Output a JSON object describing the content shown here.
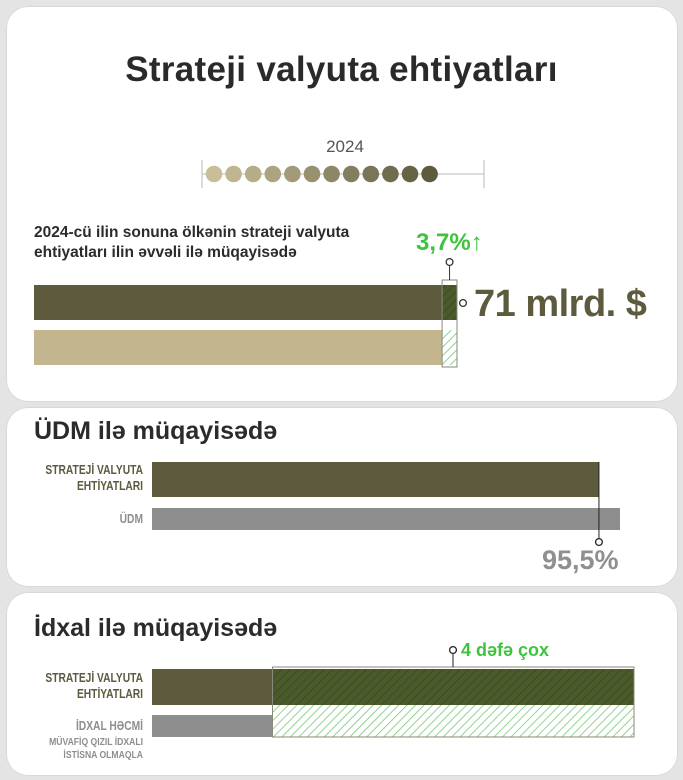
{
  "header": {
    "title": "Strateji valyuta ehtiyatları",
    "year": "2024",
    "timeline_dots": 12
  },
  "colors": {
    "olive_dark": "#5d5a3d",
    "olive_light": "#c3b68e",
    "grey": "#8e8e8e",
    "green": "#3ec43c",
    "green_dark": "#4b5a2a"
  },
  "chart_data": [
    {
      "type": "bar",
      "title": "2024-cü ilin sonuna ölkənin strateji valyuta ehtiyatları ilin əvvəli ilə müqayisədə",
      "series": [
        {
          "values": [
            71
          ]
        },
        {
          "values": [
            68.5
          ]
        }
      ],
      "annotations": {
        "change": "3,7%",
        "change_arrow": "↑",
        "value_label": "71 mlrd. $"
      }
    },
    {
      "type": "bar",
      "title": "ÜDM ilə müqayisədə",
      "categories": [
        "STRATEJİ VALYUTA EHTİYATLARI",
        "ÜDM"
      ],
      "label_lines": [
        [
          "STRATEJİ VALYUTA",
          "EHTİYATLARI"
        ],
        [
          "ÜDM"
        ]
      ],
      "values": [
        95.5,
        100
      ],
      "unit": "%",
      "annotations": {
        "ratio_label": "95,5%"
      }
    },
    {
      "type": "bar",
      "title": "İdxal ilə müqayisədə",
      "categories": [
        "STRATEJİ VALYUTA EHTİYATLARI",
        "İDXAL HƏCMİ"
      ],
      "label_lines": [
        [
          "STRATEJİ VALYUTA",
          "EHTİYATLARI"
        ],
        [
          "İDXAL HƏCMİ"
        ]
      ],
      "note_lines": [
        "MÜVAFİQ QIZIL İDXALI",
        "İSTİSNA OLMAQLA"
      ],
      "values": [
        4,
        1
      ],
      "annotations": {
        "ratio_label": "4 dəfə çox"
      }
    }
  ]
}
